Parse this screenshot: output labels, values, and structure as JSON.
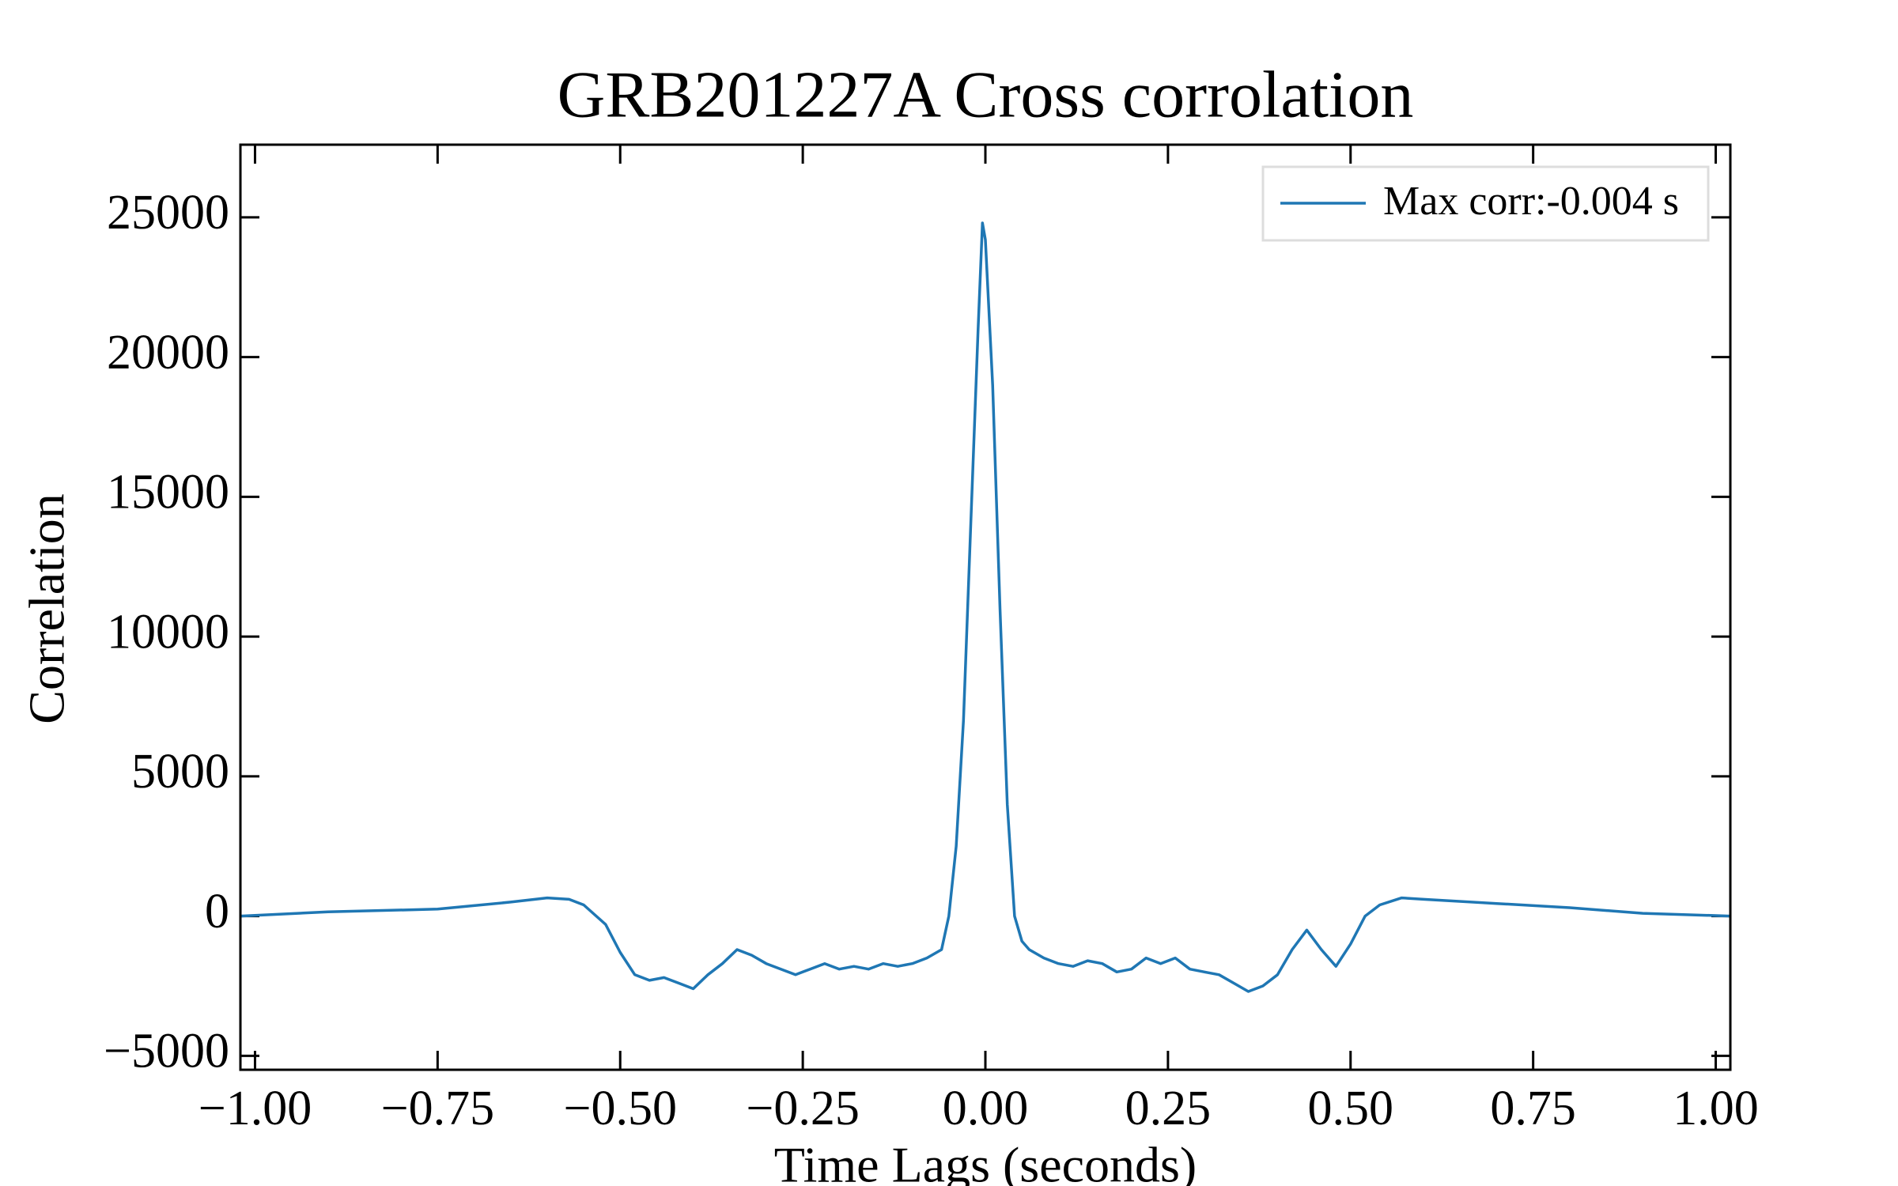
{
  "chart_data": {
    "type": "line",
    "title": "GRB201227A Cross corrolation",
    "x_label": "Time Lags (seconds)",
    "y_label": "Correlation",
    "xlim": [
      -1.02,
      1.02
    ],
    "ylim": [
      -5500,
      27600
    ],
    "xticks": [
      {
        "value": -1.0,
        "label": "−1.00"
      },
      {
        "value": -0.75,
        "label": "−0.75"
      },
      {
        "value": -0.5,
        "label": "−0.50"
      },
      {
        "value": -0.25,
        "label": "−0.25"
      },
      {
        "value": 0,
        "label": "0.00"
      },
      {
        "value": 0.25,
        "label": "0.25"
      },
      {
        "value": 0.5,
        "label": "0.50"
      },
      {
        "value": 0.75,
        "label": "0.75"
      },
      {
        "value": 1.0,
        "label": "1.00"
      }
    ],
    "yticks": [
      {
        "value": -5000,
        "label": "−5000"
      },
      0,
      5000,
      10000,
      15000,
      20000,
      25000
    ],
    "legend_position": "upper right",
    "grid": false,
    "x": [
      -1.02,
      -0.9,
      -0.75,
      -0.65,
      -0.6,
      -0.57,
      -0.55,
      -0.52,
      -0.5,
      -0.48,
      -0.46,
      -0.44,
      -0.42,
      -0.4,
      -0.38,
      -0.36,
      -0.34,
      -0.32,
      -0.3,
      -0.28,
      -0.26,
      -0.24,
      -0.22,
      -0.2,
      -0.18,
      -0.16,
      -0.14,
      -0.12,
      -0.1,
      -0.08,
      -0.06,
      -0.05,
      -0.04,
      -0.03,
      -0.02,
      -0.01,
      -0.004,
      0.0,
      0.01,
      0.02,
      0.03,
      0.04,
      0.05,
      0.06,
      0.08,
      0.1,
      0.12,
      0.14,
      0.16,
      0.18,
      0.2,
      0.22,
      0.24,
      0.26,
      0.28,
      0.3,
      0.32,
      0.34,
      0.36,
      0.38,
      0.4,
      0.42,
      0.44,
      0.46,
      0.48,
      0.5,
      0.52,
      0.54,
      0.57,
      0.6,
      0.7,
      0.8,
      0.9,
      1.02
    ],
    "series": [
      {
        "name": "Max corr:-0.004 s",
        "color": "#1f77b4",
        "values": [
          0,
          150,
          250,
          500,
          650,
          600,
          400,
          -300,
          -1300,
          -2100,
          -2300,
          -2200,
          -2400,
          -2600,
          -2100,
          -1700,
          -1200,
          -1400,
          -1700,
          -1900,
          -2100,
          -1900,
          -1700,
          -1900,
          -1800,
          -1900,
          -1700,
          -1800,
          -1700,
          -1500,
          -1200,
          0,
          2500,
          7000,
          14000,
          21000,
          24800,
          24200,
          19000,
          11000,
          4000,
          0,
          -900,
          -1200,
          -1500,
          -1700,
          -1800,
          -1600,
          -1700,
          -2000,
          -1900,
          -1500,
          -1700,
          -1500,
          -1900,
          -2000,
          -2100,
          -2400,
          -2700,
          -2500,
          -2100,
          -1200,
          -500,
          -1200,
          -1800,
          -1000,
          0,
          400,
          650,
          600,
          450,
          300,
          100,
          0
        ]
      }
    ]
  }
}
